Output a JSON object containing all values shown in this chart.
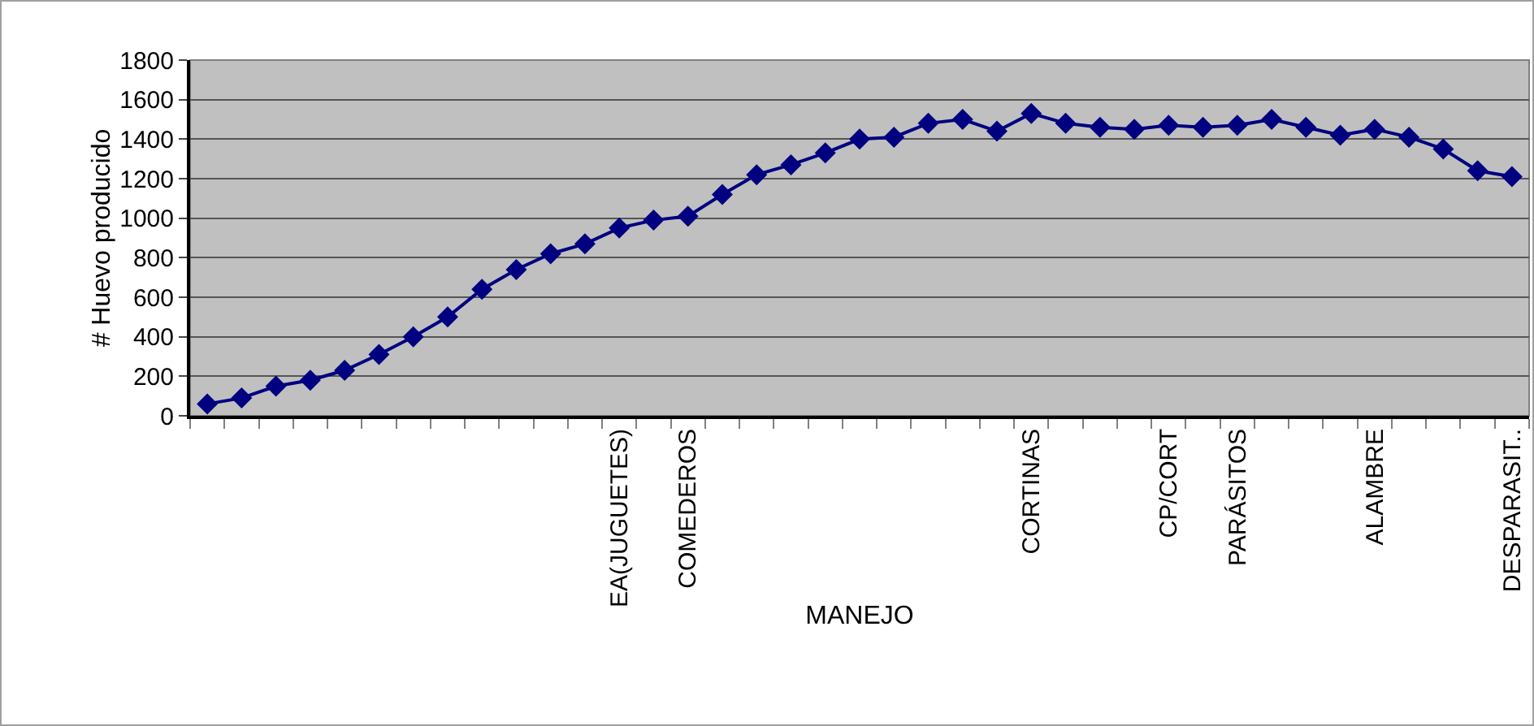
{
  "chart_data": {
    "type": "line",
    "xlabel": "MANEJO",
    "ylabel": "# Huevo producido",
    "categories": [
      null,
      null,
      null,
      null,
      null,
      null,
      null,
      null,
      null,
      null,
      null,
      null,
      "EA(JUGUETES)",
      null,
      "COMEDEROS",
      null,
      null,
      null,
      null,
      null,
      null,
      null,
      null,
      null,
      "CORTINAS",
      null,
      null,
      null,
      "CP/CORT",
      null,
      "PARÁSITOS",
      null,
      null,
      null,
      "ALAMBRE",
      null,
      null,
      null,
      "DESPARASIT.."
    ],
    "series": [
      {
        "color": "#000080",
        "values": [
          60,
          90,
          150,
          180,
          230,
          310,
          400,
          500,
          640,
          740,
          820,
          870,
          950,
          990,
          1010,
          1120,
          1220,
          1270,
          1330,
          1400,
          1410,
          1480,
          1500,
          1440,
          1530,
          1480,
          1460,
          1450,
          1470,
          1460,
          1470,
          1500,
          1460,
          1420,
          1450,
          1410,
          1350,
          1240,
          1210
        ]
      }
    ],
    "ylim": [
      0,
      1800
    ],
    "yticks": [
      0,
      200,
      400,
      600,
      800,
      1000,
      1200,
      1400,
      1600,
      1800
    ],
    "grid": "y",
    "marker": "diamond",
    "line_style": "solid"
  }
}
